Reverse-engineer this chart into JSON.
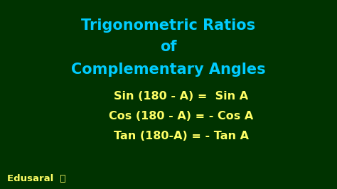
{
  "background_color": "#003300",
  "title_line1": "Trigonometric Ratios",
  "title_line2": "of",
  "title_line3": "Complementary Angles",
  "title_color": "#00CCFF",
  "formula_color": "#FFFF66",
  "formula1": "Sin (180 - A) =  Sin A",
  "formula2": "Cos (180 - A) = - Cos A",
  "formula3": "Tan (180-A) = - Tan A",
  "watermark": "Edusaral",
  "watermark_color": "#FFFF66",
  "title_fontsize": 15,
  "formula_fontsize": 11.5,
  "watermark_fontsize": 9.5
}
